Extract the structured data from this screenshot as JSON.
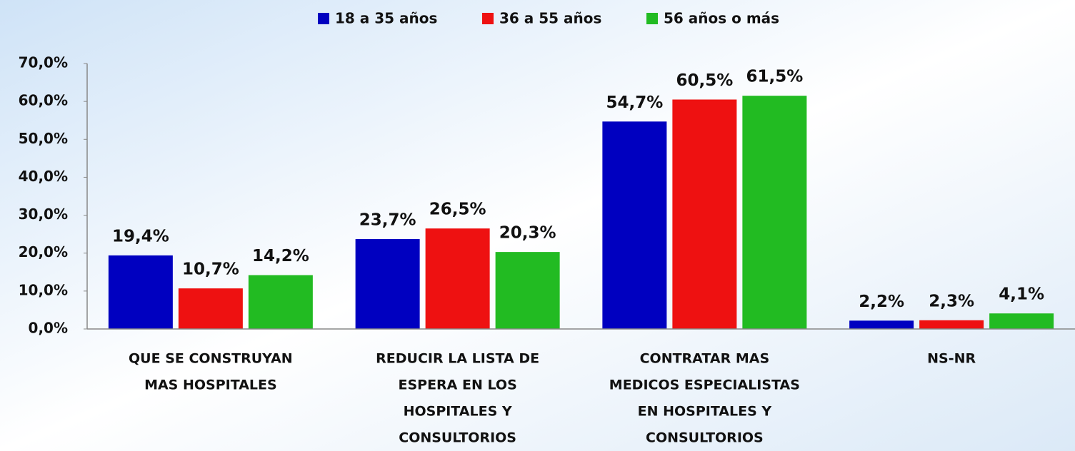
{
  "chart_data": {
    "type": "bar",
    "categories": [
      [
        "QUE SE  CONSTRUYAN",
        "MAS HOSPITALES"
      ],
      [
        "REDUCIR LA LISTA DE",
        "ESPERA EN LOS",
        "HOSPITALES Y",
        "CONSULTORIOS"
      ],
      [
        "CONTRATAR MAS",
        "MEDICOS ESPECIALISTAS",
        "EN HOSPITALES Y",
        "CONSULTORIOS"
      ],
      [
        "NS-NR"
      ]
    ],
    "series": [
      {
        "name": "18 a 35 años",
        "color": "#0000c0",
        "values": [
          19.4,
          23.7,
          54.7,
          2.2
        ],
        "value_labels": [
          "19,4%",
          "23,7%",
          "54,7%",
          "2,2%"
        ]
      },
      {
        "name": "36 a 55 años",
        "color": "#ee1111",
        "values": [
          10.7,
          26.5,
          60.5,
          2.3
        ],
        "value_labels": [
          "10,7%",
          "26,5%",
          "60,5%",
          "2,3%"
        ]
      },
      {
        "name": "56 años o más",
        "color": "#22bb22",
        "values": [
          14.2,
          20.3,
          61.5,
          4.1
        ],
        "value_labels": [
          "14,2%",
          "20,3%",
          "61,5%",
          "4,1%"
        ]
      }
    ],
    "ylim": [
      0,
      70
    ],
    "yticks": [
      {
        "value": 0,
        "label": "0,0%"
      },
      {
        "value": 10,
        "label": "10,0%"
      },
      {
        "value": 20,
        "label": "20,0%"
      },
      {
        "value": 30,
        "label": "30,0%"
      },
      {
        "value": 40,
        "label": "40,0%"
      },
      {
        "value": 50,
        "label": "50,0%"
      },
      {
        "value": 60,
        "label": "60,0%"
      },
      {
        "value": 70,
        "label": "70,0%"
      }
    ],
    "legend": "top"
  }
}
